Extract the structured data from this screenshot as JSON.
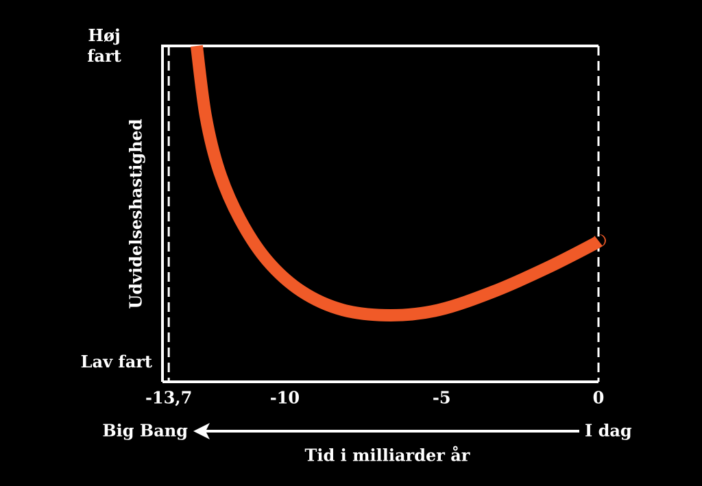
{
  "chart_data": {
    "type": "line",
    "y_label": "Udvidelseshastighed",
    "x_label": "Tid i milliarder år",
    "annotations": {
      "left": "Big Bang",
      "right": "I dag"
    },
    "x": [
      -12.81,
      -12.52,
      -12.09,
      -11.43,
      -10.56,
      -9.46,
      -8.15,
      -6.62,
      -5.09,
      -3.34,
      -1.6,
      -0.11,
      0
    ],
    "series": [
      {
        "color": "#f05a28",
        "values": [
          1.0,
          0.79,
          0.627,
          0.484,
          0.361,
          0.269,
          0.214,
          0.198,
          0.214,
          0.269,
          0.341,
          0.412,
          0.42
        ]
      }
    ],
    "xlim": [
      -13.9,
      0
    ],
    "xticks": [
      {
        "value": -13.7,
        "label": "-13,7"
      },
      -10,
      -5,
      0
    ],
    "ylim": [
      0,
      1
    ],
    "yticks": [
      {
        "value": 0.06,
        "label": "Lav fart"
      },
      {
        "value": 1,
        "label": "Høj fart"
      }
    ]
  }
}
